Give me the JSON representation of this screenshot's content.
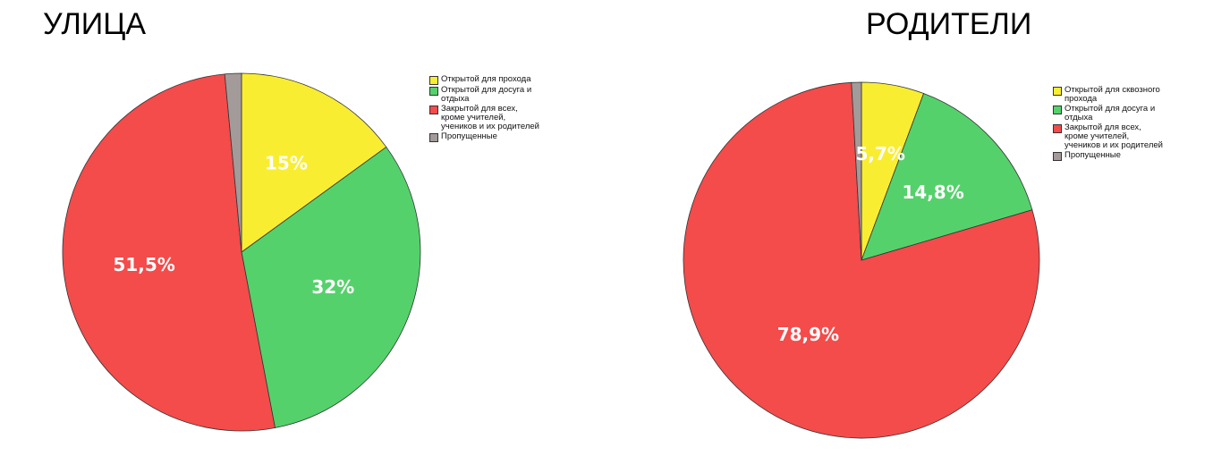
{
  "chart_data": [
    {
      "type": "pie",
      "title": "УЛИЦА",
      "slices": [
        {
          "name": "Открытой для прохода",
          "value": 15,
          "label": "15%",
          "color": "#f9ed32"
        },
        {
          "name": "Открытой для досуга и\nотдыха",
          "value": 32,
          "label": "32%",
          "color": "#55d16b"
        },
        {
          "name": "Закрытой для всех,\nкроме учителей,\nучеников и их родителей",
          "value": 51.5,
          "label": "51,5%",
          "color": "#f44b4b"
        },
        {
          "name": "Пропущенные",
          "value": 1.5,
          "label": "",
          "color": "#a39a9a"
        }
      ],
      "legend_position": "top-right"
    },
    {
      "type": "pie",
      "title": "РОДИТЕЛИ",
      "slices": [
        {
          "name": "Открытой для сквозного\nпрохода",
          "value": 5.7,
          "label": "5,7%",
          "color": "#f9ed32"
        },
        {
          "name": "Открытой для досуга и\nотдыха",
          "value": 14.8,
          "label": "14,8%",
          "color": "#55d16b"
        },
        {
          "name": "Закрытой для всех,\nкроме учителей,\nучеников и их родителей",
          "value": 78.9,
          "label": "78,9%",
          "color": "#f44b4b"
        },
        {
          "name": "Пропущенные",
          "value": 0.9,
          "label": "",
          "color": "#a39a9a"
        }
      ],
      "legend_position": "top-right"
    }
  ]
}
